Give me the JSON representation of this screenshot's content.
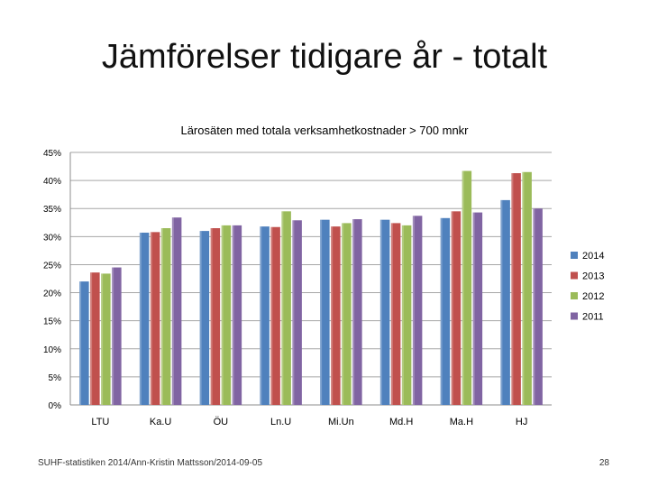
{
  "slide": {
    "title": "Jämförelser tidigare år - totalt",
    "footer": "SUHF-statistiken 2014/Ann-Kristin Mattsson/2014-09-05",
    "page_number": "28"
  },
  "chart_data": {
    "type": "bar",
    "title": "Lärosäten med totala verksamhetkostnader > 700 mnkr",
    "xlabel": "",
    "ylabel": "",
    "categories": [
      "LTU",
      "Ka.U",
      "ÖU",
      "Ln.U",
      "Mi.Un",
      "Md.H",
      "Ma.H",
      "HJ"
    ],
    "yticks": [
      "0%",
      "5%",
      "10%",
      "15%",
      "20%",
      "25%",
      "30%",
      "35%",
      "40%",
      "45%"
    ],
    "ylim": [
      0,
      45
    ],
    "grid": true,
    "legend_position": "right",
    "series": [
      {
        "name": "2014",
        "color": "#4F81BD",
        "values": [
          22.0,
          30.7,
          31.0,
          31.8,
          33.0,
          33.0,
          33.3,
          36.5
        ]
      },
      {
        "name": "2013",
        "color": "#C0504D",
        "values": [
          23.6,
          30.8,
          31.5,
          31.7,
          31.8,
          32.4,
          34.5,
          41.3
        ]
      },
      {
        "name": "2012",
        "color": "#9BBB59",
        "values": [
          23.4,
          31.5,
          32.0,
          34.5,
          32.4,
          32.0,
          41.7,
          41.5
        ]
      },
      {
        "name": "2011",
        "color": "#8064A2",
        "values": [
          24.5,
          33.4,
          32.0,
          32.9,
          33.1,
          33.7,
          34.3,
          35.0
        ]
      }
    ]
  }
}
